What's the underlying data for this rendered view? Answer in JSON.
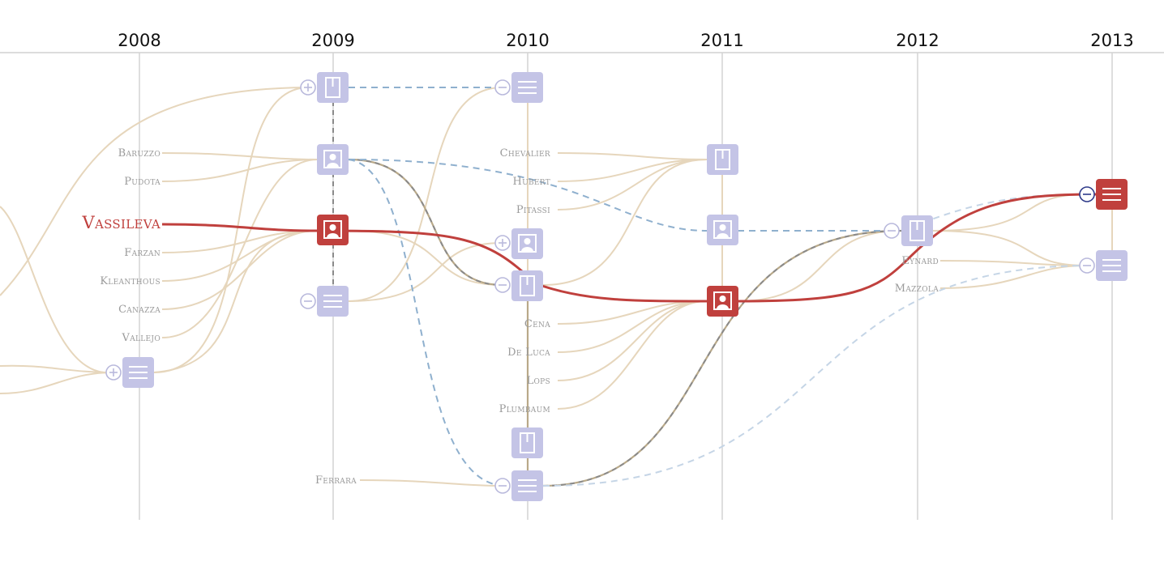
{
  "years": [
    "2008",
    "2009",
    "2010",
    "2011",
    "2012",
    "2013"
  ],
  "names": {
    "baruzzo": "Baruzzo",
    "pudota": "Pudota",
    "vassileva": "Vassileva",
    "farzan": "Farzan",
    "kleanthous": "Kleanthous",
    "canazza": "Canazza",
    "vallejo": "Vallejo",
    "chevalier": "Chevalier",
    "hubert": "Hubert",
    "pitassi": "Pitassi",
    "cena": "Cena",
    "de_luca": "De Luca",
    "lops": "Lops",
    "plumbaum": "Plumbaum",
    "ferrara": "Ferrara",
    "eynard": "Eynard",
    "mazzola": "Mazzola"
  },
  "colors": {
    "focus": "#c0403d",
    "node": "#c4c4e6",
    "link": "#e6d6bc",
    "dashed": "#8fb0ce"
  },
  "icons": {
    "book": "book-icon",
    "person": "person-icon",
    "list": "list-icon",
    "expand": "plus-circle-icon",
    "collapse": "minus-circle-icon"
  }
}
